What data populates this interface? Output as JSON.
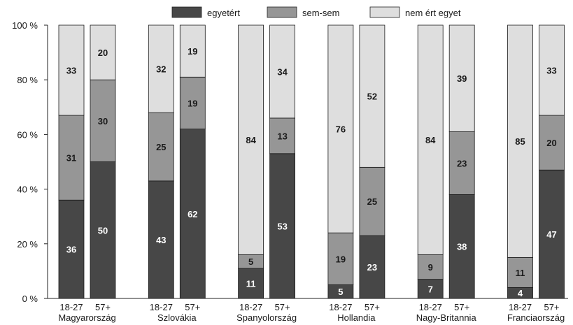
{
  "chart_data": {
    "type": "bar",
    "stacked": true,
    "percent": true,
    "ylim": [
      0,
      100
    ],
    "yticks": [
      "0 %",
      "20 %",
      "40 %",
      "60 %",
      "80 %",
      "100 %"
    ],
    "grid": false,
    "legend_position": "top",
    "countries": [
      "Magyarország",
      "Szlovákia",
      "Spanyolország",
      "Hollandia",
      "Nagy-Britannia",
      "Franciaország"
    ],
    "age_groups": [
      "18-27",
      "57+"
    ],
    "series": [
      {
        "name": "egyetért",
        "color": "#474747",
        "label_color": "#ffffff",
        "values": [
          36,
          50,
          43,
          62,
          11,
          53,
          5,
          23,
          7,
          38,
          4,
          47
        ]
      },
      {
        "name": "sem-sem",
        "color": "#969696",
        "label_color": "#1a1a1a",
        "values": [
          31,
          30,
          25,
          19,
          5,
          13,
          19,
          25,
          9,
          23,
          11,
          20
        ]
      },
      {
        "name": "nem ért egyet",
        "color": "#dedede",
        "label_color": "#1a1a1a",
        "values": [
          33,
          20,
          32,
          19,
          84,
          34,
          76,
          52,
          84,
          39,
          85,
          33
        ]
      }
    ]
  }
}
